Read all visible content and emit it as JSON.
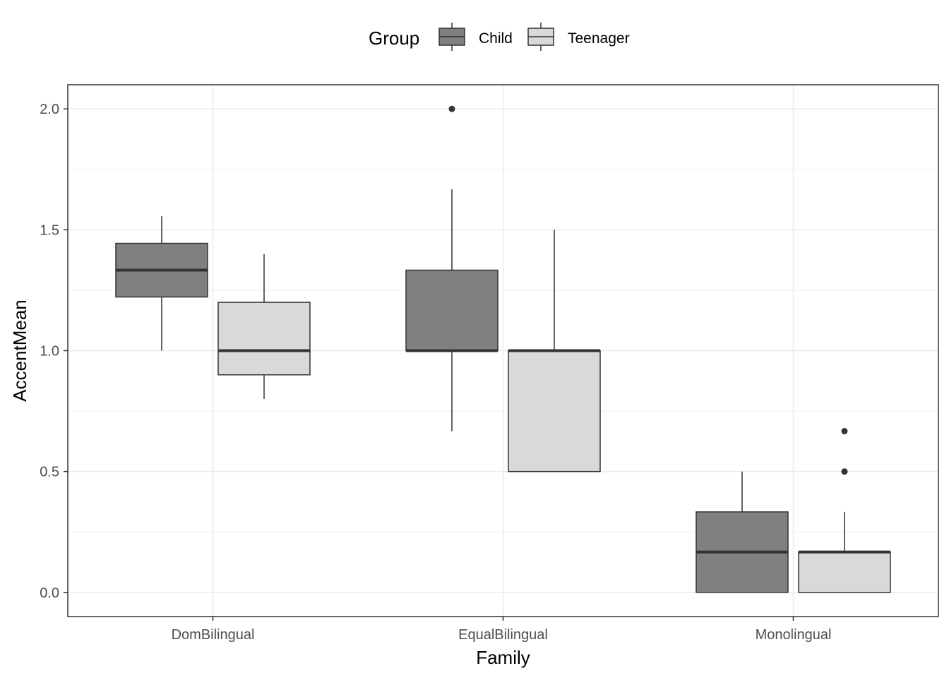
{
  "chart_data": {
    "type": "boxplot",
    "xlabel": "Family",
    "ylabel": "AccentMean",
    "categories": [
      "DomBilingual",
      "EqualBilingual",
      "Monolingual"
    ],
    "ylim": [
      -0.1,
      2.1
    ],
    "yticks": [
      0.0,
      0.5,
      1.0,
      1.5,
      2.0
    ],
    "ytick_labels": [
      "0.0",
      "0.5",
      "1.0",
      "1.5",
      "2.0"
    ],
    "grid": true,
    "legend": {
      "title": "Group",
      "position": "top",
      "entries": [
        "Child",
        "Teenager"
      ]
    },
    "series": [
      {
        "name": "Child",
        "color": "#808080",
        "boxes": [
          {
            "category": "DomBilingual",
            "min": 1.0,
            "q1": 1.222,
            "median": 1.333,
            "q3": 1.444,
            "max": 1.556,
            "outliers": []
          },
          {
            "category": "EqualBilingual",
            "min": 0.667,
            "q1": 1.0,
            "median": 1.0,
            "q3": 1.333,
            "max": 1.667,
            "outliers": [
              2.0
            ]
          },
          {
            "category": "Monolingual",
            "min": 0.0,
            "q1": 0.0,
            "median": 0.167,
            "q3": 0.333,
            "max": 0.5,
            "outliers": []
          }
        ]
      },
      {
        "name": "Teenager",
        "color": "#d9d9d9",
        "boxes": [
          {
            "category": "DomBilingual",
            "min": 0.8,
            "q1": 0.9,
            "median": 1.0,
            "q3": 1.2,
            "max": 1.4,
            "outliers": []
          },
          {
            "category": "EqualBilingual",
            "min": 0.5,
            "q1": 0.5,
            "median": 1.0,
            "q3": 1.0,
            "max": 1.5,
            "outliers": []
          },
          {
            "category": "Monolingual",
            "min": 0.0,
            "q1": 0.0,
            "median": 0.167,
            "q3": 0.167,
            "max": 0.333,
            "outliers": [
              0.5,
              0.667
            ]
          }
        ]
      }
    ]
  }
}
